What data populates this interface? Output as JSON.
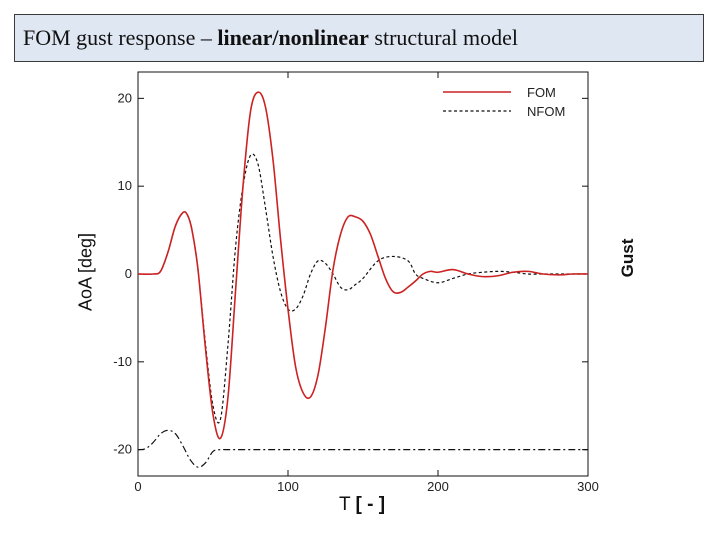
{
  "slide": {
    "title_prefix": "FOM gust response – ",
    "title_bold": "linear/nonlinear",
    "title_suffix": " structural model"
  },
  "chart_data": {
    "type": "line",
    "xlabel_plain": "T ",
    "xlabel_bold": "[ - ]",
    "ylabel": "AoA [deg]",
    "y2label": "Gust",
    "xlim": [
      0,
      300
    ],
    "ylim": [
      -23,
      23
    ],
    "xticks": [
      "0",
      "100",
      "200",
      "300"
    ],
    "yticks": [
      "20",
      "10",
      "0",
      "-10",
      "-20"
    ],
    "grid": false,
    "legend_position": "top-right",
    "colors": {
      "FOM": "#cc2222",
      "NFOM": "#111111",
      "gust": "#111111"
    },
    "series": [
      {
        "name": "FOM",
        "style": "solid",
        "x": [
          0,
          10,
          15,
          20,
          25,
          30,
          33,
          36,
          40,
          45,
          50,
          55,
          60,
          65,
          70,
          75,
          80,
          85,
          90,
          95,
          100,
          105,
          110,
          115,
          120,
          125,
          130,
          135,
          140,
          145,
          150,
          155,
          160,
          165,
          170,
          175,
          180,
          185,
          190,
          195,
          200,
          210,
          220,
          230,
          240,
          250,
          260,
          270,
          280,
          290,
          300
        ],
        "y": [
          0,
          0,
          0.3,
          2.5,
          5.5,
          7.0,
          6.7,
          5.0,
          0.5,
          -8.5,
          -16.0,
          -18.7,
          -14.0,
          -2.0,
          10.0,
          18.5,
          20.7,
          19.0,
          13.0,
          4.0,
          -4.0,
          -10.5,
          -13.5,
          -14.0,
          -11.5,
          -6.0,
          0.5,
          4.5,
          6.5,
          6.5,
          6.0,
          4.5,
          2.0,
          -0.5,
          -2.0,
          -2.1,
          -1.5,
          -0.8,
          0,
          0.3,
          0.2,
          0.5,
          0.0,
          -0.3,
          -0.2,
          0.2,
          0.3,
          0.0,
          -0.1,
          0.0,
          0.0
        ]
      },
      {
        "name": "NFOM",
        "style": "dashed",
        "x": [
          0,
          10,
          15,
          20,
          25,
          30,
          33,
          36,
          40,
          45,
          50,
          55,
          60,
          65,
          70,
          75,
          80,
          85,
          90,
          95,
          100,
          105,
          110,
          115,
          120,
          125,
          130,
          135,
          140,
          145,
          150,
          160,
          170,
          180,
          185,
          190,
          200,
          210,
          220,
          230,
          240,
          250,
          260,
          270,
          280,
          290,
          300
        ],
        "y": [
          0,
          0,
          0.3,
          2.5,
          5.5,
          7.0,
          6.7,
          5.0,
          0.5,
          -8.0,
          -15.0,
          -16.5,
          -8.0,
          3.0,
          10.0,
          13.5,
          12.5,
          7.5,
          2.0,
          -2.0,
          -4.0,
          -4.0,
          -2.5,
          0,
          1.5,
          1.2,
          0,
          -1.5,
          -1.8,
          -1.2,
          -0.5,
          1.5,
          2.0,
          1.5,
          0,
          -0.5,
          -1.0,
          -0.5,
          0,
          0.2,
          0.3,
          0.2,
          0.0,
          0.0,
          0.0,
          0.0,
          0.0
        ]
      },
      {
        "name": "gust",
        "style": "dashdot",
        "x": [
          0,
          5,
          10,
          15,
          20,
          25,
          30,
          35,
          40,
          45,
          50,
          55,
          60,
          80,
          100,
          150,
          200,
          250,
          300
        ],
        "y": [
          -20,
          -19.9,
          -19.2,
          -18.2,
          -17.8,
          -18.2,
          -19.6,
          -21.2,
          -22.0,
          -21.5,
          -20.2,
          -20.0,
          -20.0,
          -20.0,
          -20.0,
          -20.0,
          -20.0,
          -20.0,
          -20.0
        ]
      }
    ]
  }
}
